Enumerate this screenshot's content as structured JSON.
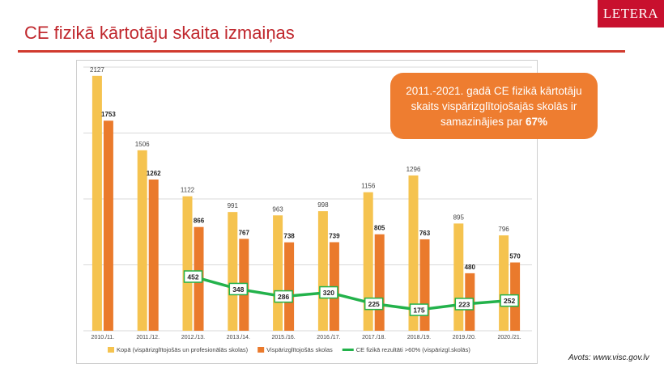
{
  "page": {
    "title": "CE fizikā kārtotāju skaita izmaiņas",
    "logo": "LETERA",
    "source": "Avots: www.visc.gov.lv",
    "callout_text": "2011.-2021. gadā CE fizikā kārtotāju skaits vispārizglītojošajās skolās ir samazinājies par",
    "callout_highlight": "67%"
  },
  "colors": {
    "total": "#f5c34f",
    "general": "#ea7a2c",
    "line": "#23b24b",
    "accent": "#c0272d",
    "callout": "#ee7d30",
    "grid": "#d9d9d9"
  },
  "chart_data": {
    "type": "bar",
    "categories": [
      "2010./11.",
      "2011./12.",
      "2012./13.",
      "2013./14.",
      "2015./16.",
      "2016./17.",
      "2017./18.",
      "2018./19.",
      "2019./20.",
      "2020./21."
    ],
    "series": [
      {
        "name": "Kopā (vispārizglītojošās un profesionālās skolas)",
        "type": "bar",
        "values": [
          2127,
          1506,
          1122,
          991,
          963,
          998,
          1156,
          1296,
          895,
          796
        ]
      },
      {
        "name": "Vispārizglītojošās skolas",
        "type": "bar",
        "values": [
          1753,
          1262,
          866,
          767,
          738,
          739,
          805,
          763,
          480,
          570
        ]
      },
      {
        "name": "CE fizikā rezultāti >60% (vispārizgl.skolās)",
        "type": "line",
        "values": [
          null,
          null,
          452,
          348,
          286,
          320,
          225,
          175,
          223,
          252
        ]
      }
    ],
    "ylim": [
      0,
      2200
    ],
    "grid": true,
    "legend": "bottom"
  }
}
